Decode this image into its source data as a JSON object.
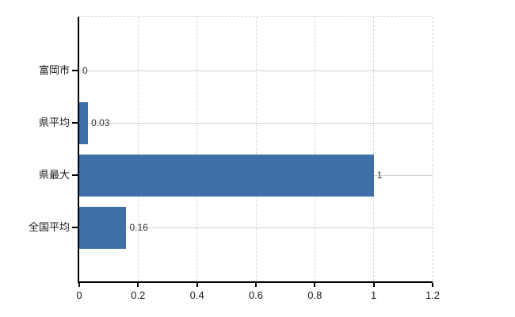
{
  "chart_data": {
    "type": "bar",
    "orientation": "horizontal",
    "title": "",
    "xlabel": "",
    "ylabel": "",
    "categories": [
      "富岡市",
      "県平均",
      "県最大",
      "全国平均"
    ],
    "values": [
      0,
      0.03,
      1,
      0.16
    ],
    "value_labels": [
      "0",
      "0.03",
      "1",
      "0.16"
    ],
    "xlim": [
      0,
      1.2
    ],
    "x_ticks": [
      0,
      0.2,
      0.4,
      0.6,
      0.8,
      1,
      1.2
    ],
    "x_tick_labels": [
      "0",
      "0.2",
      "0.4",
      "0.6",
      "0.8",
      "1",
      "1.2"
    ],
    "grid": true,
    "legend": null,
    "colors": {
      "bar": "#3e6fa9",
      "h_gridline": "#ccd6cc",
      "v_gridline": "#d4d4d4",
      "axis": "#000000",
      "axis_text": "#1a1a1a",
      "value_text": "#333333",
      "background": "#ffffff"
    }
  }
}
